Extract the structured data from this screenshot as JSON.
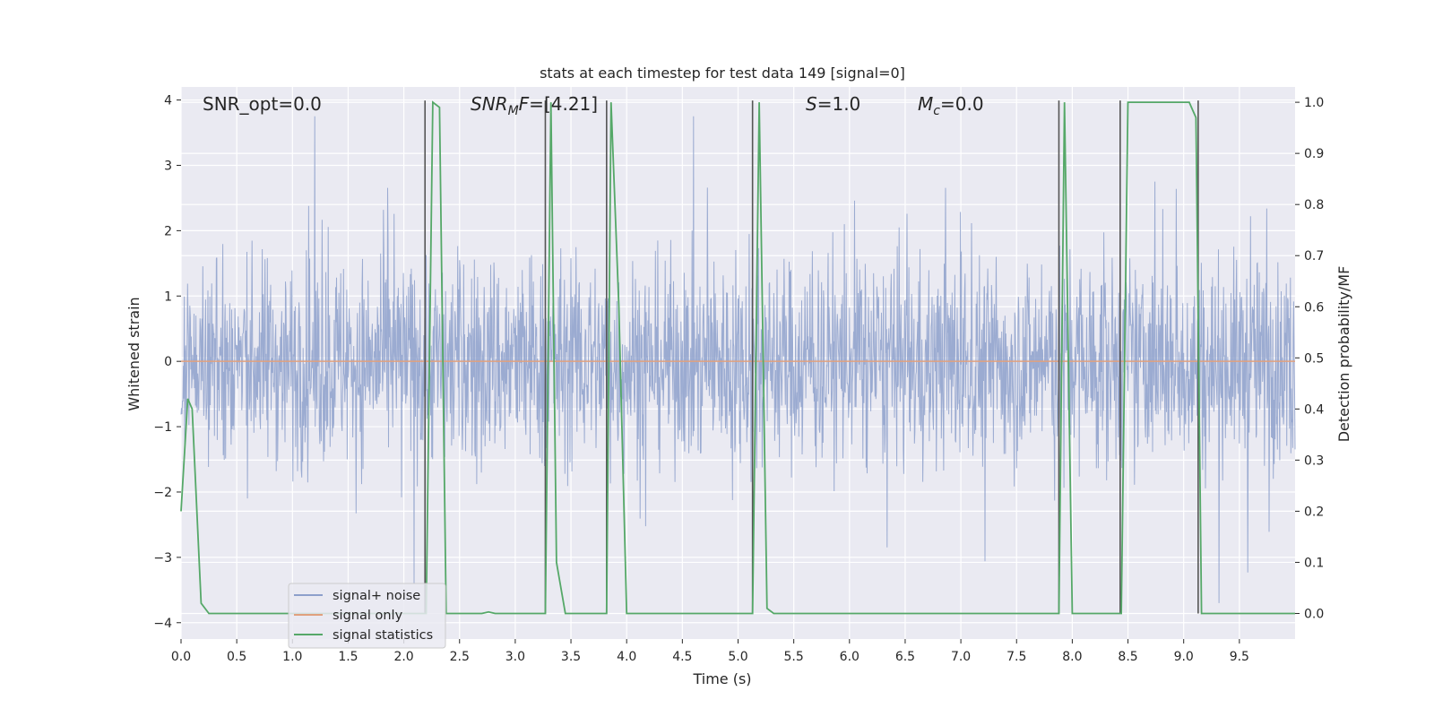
{
  "chart_data": {
    "type": "line",
    "title": "stats at each timestep for test data 149 [signal=0]",
    "xlabel": "Time (s)",
    "ylabel": "Whitened strain",
    "ylabel_right": "Detection probability/MF",
    "xlim": [
      0,
      10
    ],
    "ylim": [
      -4.25,
      4.2
    ],
    "ylim_right": [
      -0.05,
      1.03
    ],
    "x_ticks": [
      "0.0",
      "0.5",
      "1.0",
      "1.5",
      "2.0",
      "2.5",
      "3.0",
      "3.5",
      "4.0",
      "4.5",
      "5.0",
      "5.5",
      "6.0",
      "6.5",
      "7.0",
      "7.5",
      "8.0",
      "8.5",
      "9.0",
      "9.5"
    ],
    "y_ticks": [
      "4",
      "3",
      "2",
      "1",
      "0",
      "−1",
      "−2",
      "−3",
      "−4"
    ],
    "y_ticks_right": [
      "1.0",
      "0.9",
      "0.8",
      "0.7",
      "0.6",
      "0.5",
      "0.4",
      "0.3",
      "0.2",
      "0.1",
      "0.0"
    ],
    "grid": true,
    "legend_position": "lower-left",
    "annotations": {
      "snr_opt": "SNR_opt=0.0",
      "snr_mf": "[4.21]",
      "s_value": "1.0",
      "mc_value": "0.0"
    },
    "series": [
      {
        "name": "signal+ noise",
        "color": "#8da0cb",
        "description": "dense whitened-noise trace, roughly within ±1.7 with spikes to about ±3.7"
      },
      {
        "name": "signal only",
        "color": "#e0a07e",
        "y_constant": 0
      },
      {
        "name": "signal statistics",
        "color": "#55a868",
        "axis": "right",
        "points": [
          [
            0,
            0.2
          ],
          [
            0.06,
            0.42
          ],
          [
            0.1,
            0.4
          ],
          [
            0.18,
            0.02
          ],
          [
            0.25,
            0.0
          ],
          [
            2.2,
            0.0
          ],
          [
            2.26,
            1.0
          ],
          [
            2.32,
            0.99
          ],
          [
            2.38,
            0.0
          ],
          [
            2.7,
            0.0
          ],
          [
            2.76,
            0.003
          ],
          [
            2.82,
            0.0
          ],
          [
            3.27,
            0.0
          ],
          [
            3.32,
            1.0
          ],
          [
            3.37,
            0.1
          ],
          [
            3.45,
            0.0
          ],
          [
            3.82,
            0.0
          ],
          [
            3.86,
            1.0
          ],
          [
            3.93,
            0.6
          ],
          [
            4.0,
            0.0
          ],
          [
            5.13,
            0.0
          ],
          [
            5.19,
            1.0
          ],
          [
            5.26,
            0.01
          ],
          [
            5.32,
            0.0
          ],
          [
            7.88,
            0.0
          ],
          [
            7.93,
            1.0
          ],
          [
            8.0,
            0.0
          ],
          [
            8.44,
            0.0
          ],
          [
            8.5,
            1.0
          ],
          [
            9.05,
            1.0
          ],
          [
            9.11,
            0.97
          ],
          [
            9.16,
            0.0
          ],
          [
            10.0,
            0.0
          ]
        ]
      }
    ],
    "mf_markers": {
      "color": "#555555",
      "x": [
        2.19,
        3.27,
        3.82,
        5.13,
        7.88,
        8.43,
        9.13
      ]
    }
  }
}
